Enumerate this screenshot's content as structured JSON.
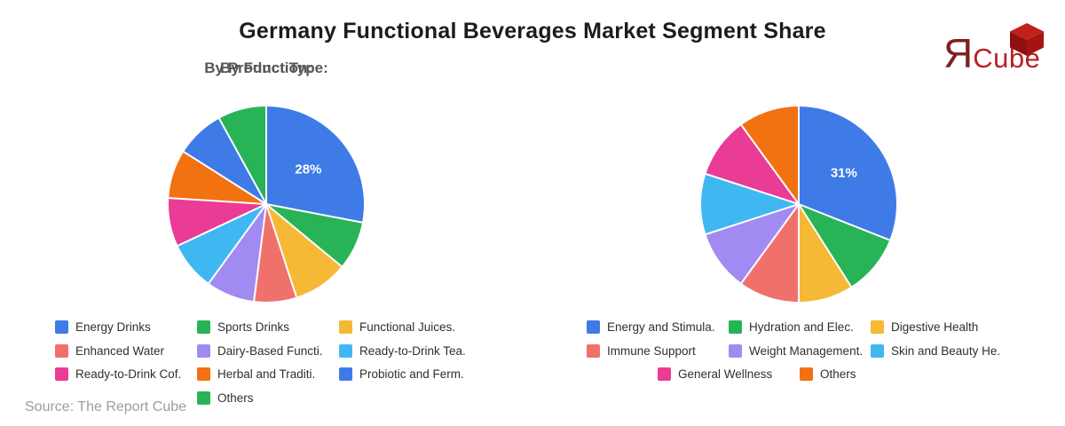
{
  "title": "Germany Functional Beverages Market Segment Share",
  "source": "Source: The Report Cube",
  "logo": {
    "mark": "Я",
    "word": "Cube",
    "mark_color": "#7E2020",
    "word_color": "#B92025",
    "cube_top_color": "#C1211D",
    "cube_left_color": "#8E1010",
    "cube_right_color": "#A41512"
  },
  "chart_data": [
    {
      "type": "pie",
      "title": "By Product Type:",
      "categories": [
        "Energy Drinks",
        "Sports Drinks",
        "Functional Juices.",
        "Enhanced Water",
        "Dairy-Based Functi.",
        "Ready-to-Drink Tea.",
        "Ready-to-Drink Cof.",
        "Herbal and Traditi.",
        "Probiotic and Ferm.",
        "Others"
      ],
      "values": [
        28,
        8,
        9,
        7,
        8,
        8,
        8,
        8,
        8,
        8
      ],
      "colors": [
        "#3E7BE7",
        "#28B456",
        "#F5B936",
        "#F0716B",
        "#A18BF2",
        "#3FB8F2",
        "#EA3C94",
        "#F27111",
        "#3E7BE7",
        "#28B456"
      ],
      "shown_labels": [
        {
          "slice_index": 0,
          "text": "28%"
        }
      ],
      "label_color": "#FFFFFF",
      "start_angle_deg": 0,
      "direction": "clockwise",
      "legend_position": "bottom",
      "separator_color": "#FFFFFF"
    },
    {
      "type": "pie",
      "title": "By Function:",
      "categories": [
        "Energy and Stimula.",
        "Hydration and Elec.",
        "Digestive Health",
        "Immune Support",
        "Weight Management.",
        "Skin and Beauty He.",
        "General Wellness",
        "Others"
      ],
      "values": [
        31,
        10,
        9,
        10,
        10,
        10,
        10,
        10
      ],
      "colors": [
        "#3E7BE7",
        "#28B456",
        "#F5B936",
        "#F0716B",
        "#A18BF2",
        "#3FB8F2",
        "#EA3C94",
        "#F27111"
      ],
      "shown_labels": [
        {
          "slice_index": 0,
          "text": "31%"
        }
      ],
      "label_color": "#FFFFFF",
      "start_angle_deg": 0,
      "direction": "clockwise",
      "legend_position": "bottom",
      "separator_color": "#FFFFFF"
    }
  ]
}
